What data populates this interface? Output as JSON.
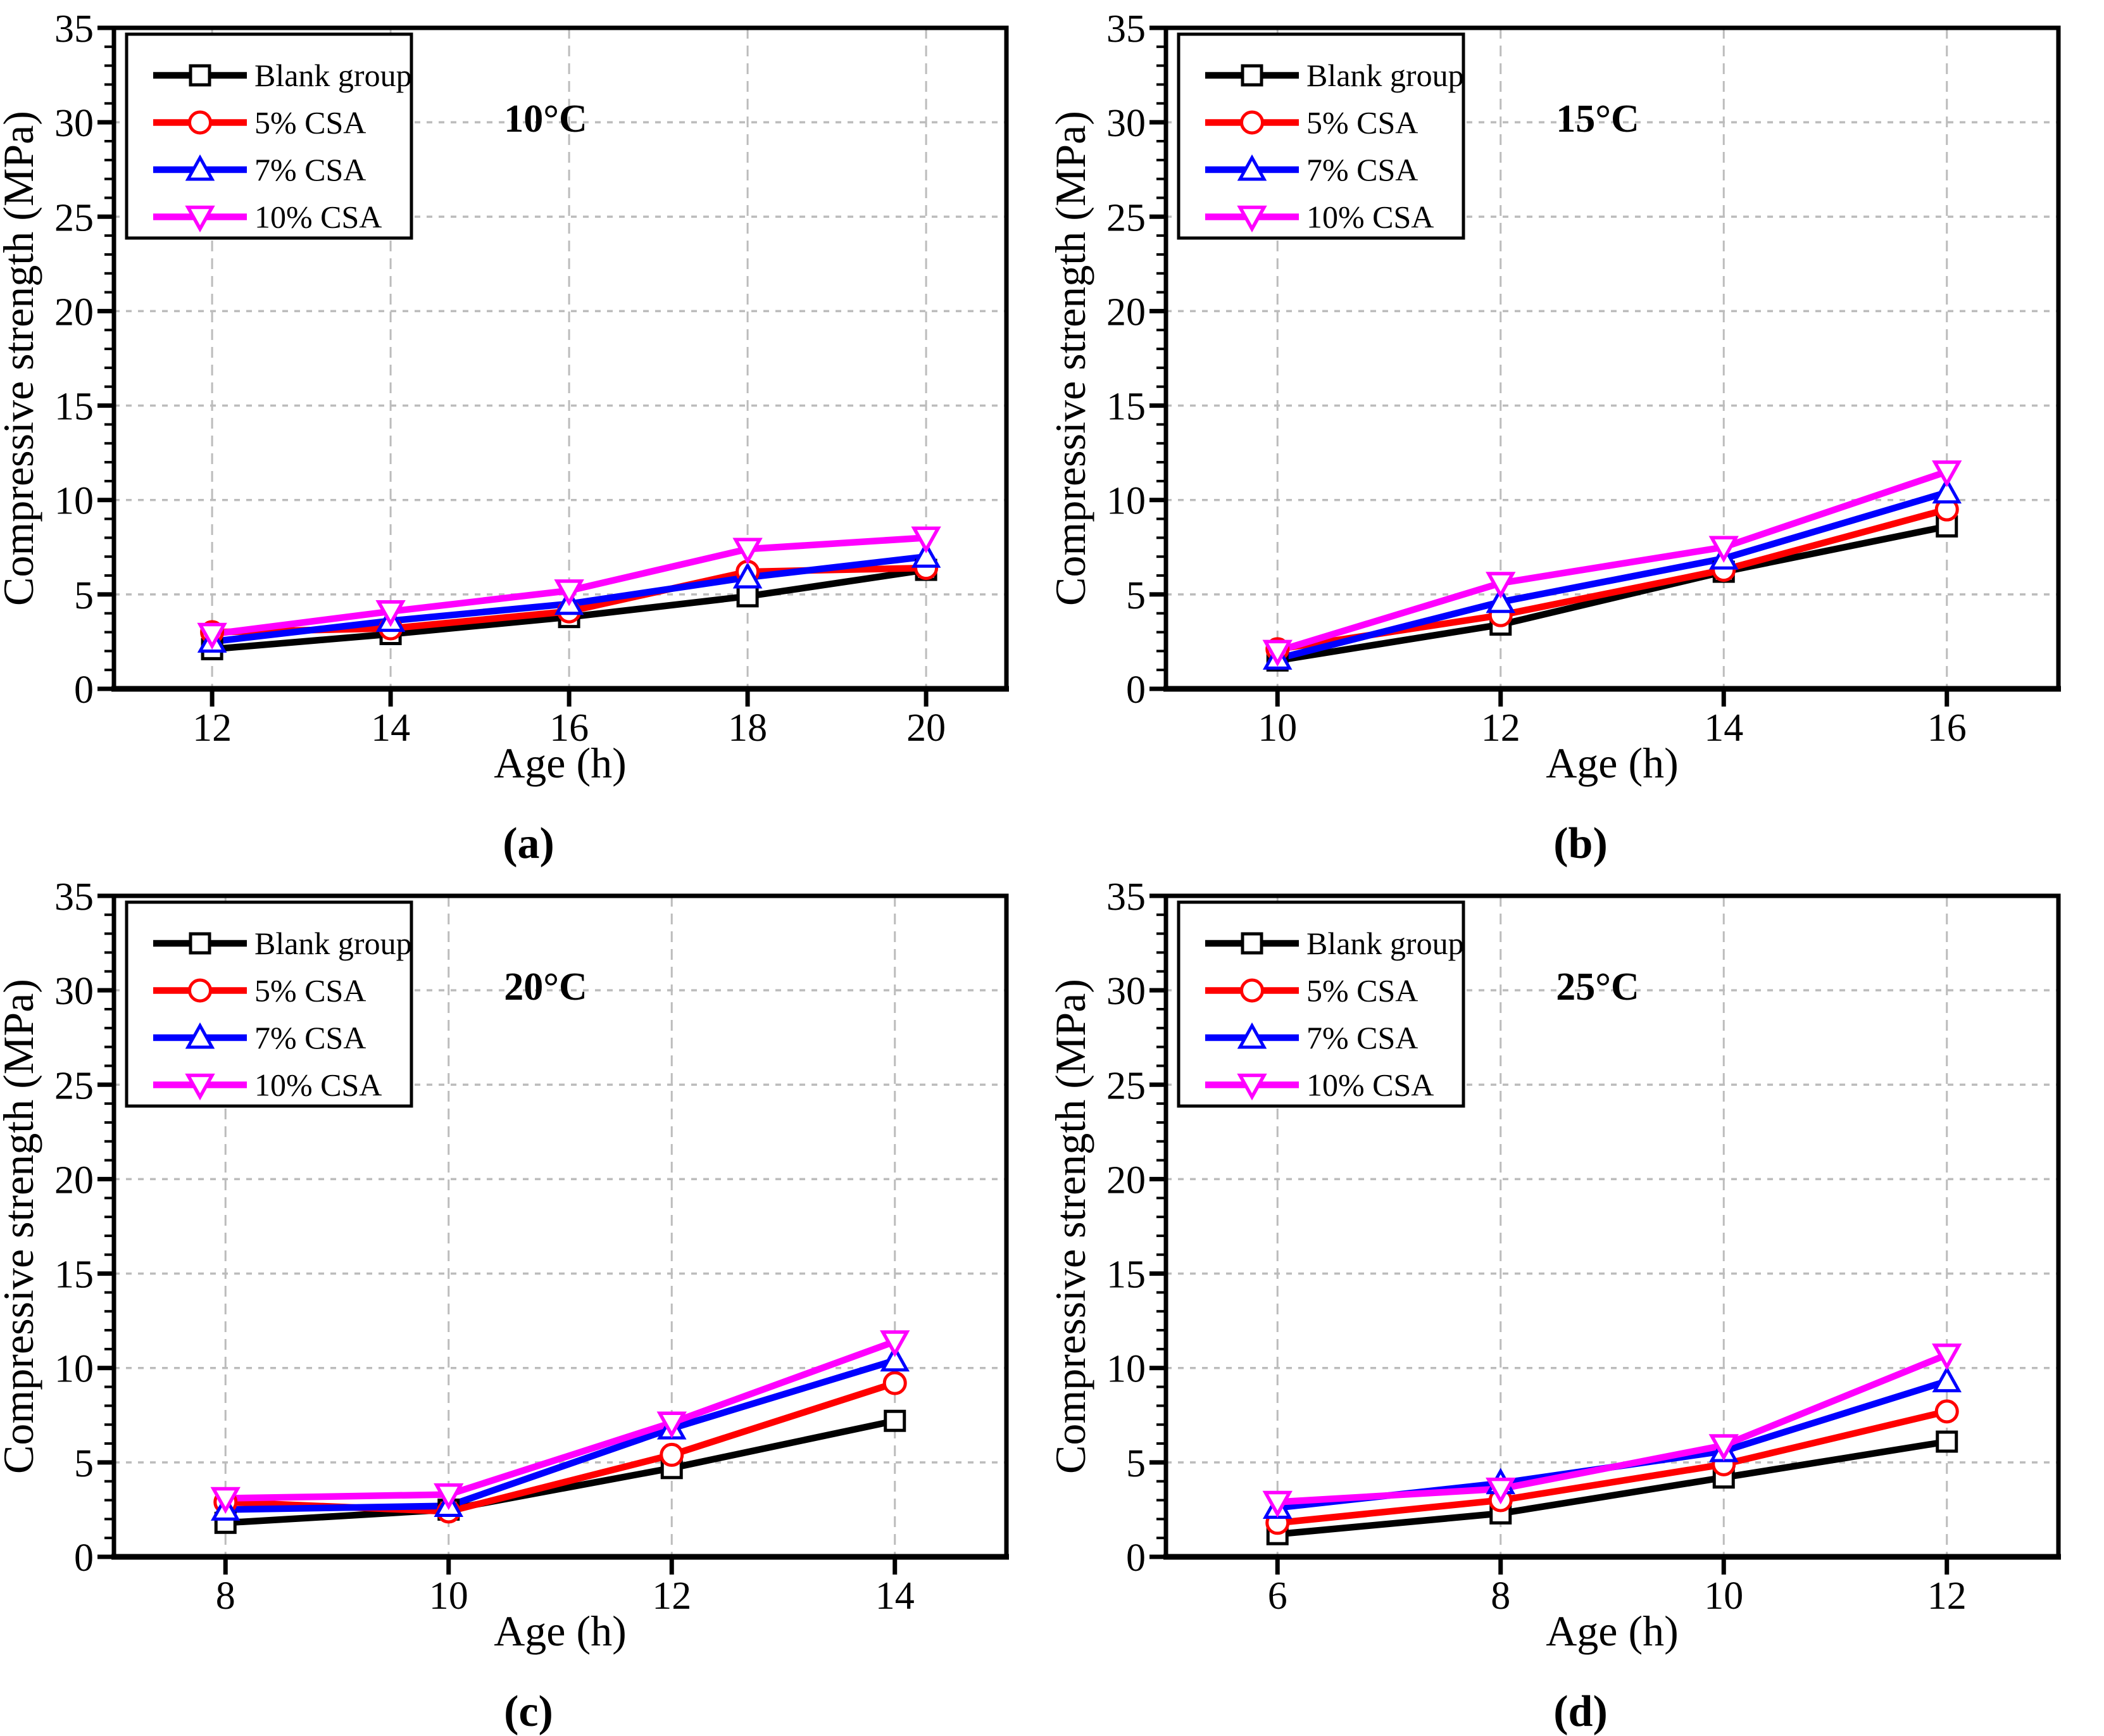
{
  "figure": {
    "background": "#ffffff",
    "grid_color": "#bcbcbc",
    "axis_color": "#000000",
    "legend_labels": [
      "Blank group",
      "5% CSA",
      "7% CSA",
      "10% CSA"
    ],
    "series_colors": [
      "#000000",
      "#ff0000",
      "#0000ff",
      "#ff00ff"
    ],
    "series_markers": [
      "square",
      "circle",
      "triangle-up",
      "triangle-down"
    ]
  },
  "chart_data": [
    {
      "type": "line",
      "panel_label": "(a)",
      "title": "10°C",
      "xlabel": "Age (h)",
      "ylabel": "Compressive strength (MPa)",
      "x": [
        12,
        14,
        16,
        18,
        20
      ],
      "xticks": [
        12,
        14,
        16,
        18,
        20
      ],
      "xlim": [
        10.9,
        20.9
      ],
      "ylim": [
        0,
        35
      ],
      "yticks": [
        0,
        5,
        10,
        15,
        20,
        25,
        30,
        35
      ],
      "grid": "dashed",
      "legend_position": "top-left",
      "series": [
        {
          "name": "Blank group",
          "color": "#000000",
          "marker": "square",
          "values": [
            2.1,
            2.9,
            3.8,
            4.9,
            6.3
          ]
        },
        {
          "name": "5% CSA",
          "color": "#ff0000",
          "marker": "circle",
          "values": [
            3.0,
            3.2,
            4.1,
            6.2,
            6.4
          ]
        },
        {
          "name": "7% CSA",
          "color": "#0000ff",
          "marker": "triangle-up",
          "values": [
            2.5,
            3.6,
            4.5,
            5.9,
            7.0
          ]
        },
        {
          "name": "10% CSA",
          "color": "#ff00ff",
          "marker": "triangle-down",
          "values": [
            2.9,
            4.1,
            5.2,
            7.4,
            8.0
          ]
        }
      ]
    },
    {
      "type": "line",
      "panel_label": "(b)",
      "title": "15°C",
      "xlabel": "Age (h)",
      "ylabel": "Compressive strength (MPa)",
      "x": [
        10,
        12,
        14,
        16
      ],
      "xticks": [
        10,
        12,
        14,
        16
      ],
      "xlim": [
        9,
        17
      ],
      "ylim": [
        0,
        35
      ],
      "yticks": [
        0,
        5,
        10,
        15,
        20,
        25,
        30,
        35
      ],
      "grid": "dashed",
      "legend_position": "top-left",
      "series": [
        {
          "name": "Blank group",
          "color": "#000000",
          "marker": "square",
          "values": [
            1.5,
            3.4,
            6.2,
            8.6
          ]
        },
        {
          "name": "5% CSA",
          "color": "#ff0000",
          "marker": "circle",
          "values": [
            2.1,
            3.9,
            6.3,
            9.5
          ]
        },
        {
          "name": "7% CSA",
          "color": "#0000ff",
          "marker": "triangle-up",
          "values": [
            1.6,
            4.6,
            6.9,
            10.4
          ]
        },
        {
          "name": "10% CSA",
          "color": "#ff00ff",
          "marker": "triangle-down",
          "values": [
            2.0,
            5.6,
            7.5,
            11.5
          ]
        }
      ]
    },
    {
      "type": "line",
      "panel_label": "(c)",
      "title": "20°C",
      "xlabel": "Age (h)",
      "ylabel": "Compressive strength (MPa)",
      "x": [
        8,
        10,
        12,
        14
      ],
      "xticks": [
        8,
        10,
        12,
        14
      ],
      "xlim": [
        7,
        15
      ],
      "ylim": [
        0,
        35
      ],
      "yticks": [
        0,
        5,
        10,
        15,
        20,
        25,
        30,
        35
      ],
      "grid": "dashed",
      "legend_position": "top-left",
      "series": [
        {
          "name": "Blank group",
          "color": "#000000",
          "marker": "square",
          "values": [
            1.8,
            2.5,
            4.7,
            7.2
          ]
        },
        {
          "name": "5% CSA",
          "color": "#ff0000",
          "marker": "circle",
          "values": [
            2.9,
            2.4,
            5.4,
            9.2
          ]
        },
        {
          "name": "7% CSA",
          "color": "#0000ff",
          "marker": "triangle-up",
          "values": [
            2.5,
            2.7,
            6.8,
            10.4
          ]
        },
        {
          "name": "10% CSA",
          "color": "#ff00ff",
          "marker": "triangle-down",
          "values": [
            3.1,
            3.3,
            7.1,
            11.4
          ]
        }
      ]
    },
    {
      "type": "line",
      "panel_label": "(d)",
      "title": "25°C",
      "xlabel": "Age (h)",
      "ylabel": "Compressive strength (MPa)",
      "x": [
        6,
        8,
        10,
        12
      ],
      "xticks": [
        6,
        8,
        10,
        12
      ],
      "xlim": [
        5,
        13
      ],
      "ylim": [
        0,
        35
      ],
      "yticks": [
        0,
        5,
        10,
        15,
        20,
        25,
        30,
        35
      ],
      "grid": "dashed",
      "legend_position": "top-left",
      "series": [
        {
          "name": "Blank group",
          "color": "#000000",
          "marker": "square",
          "values": [
            1.2,
            2.3,
            4.2,
            6.1
          ]
        },
        {
          "name": "5% CSA",
          "color": "#ff0000",
          "marker": "circle",
          "values": [
            1.8,
            3.0,
            4.9,
            7.7
          ]
        },
        {
          "name": "7% CSA",
          "color": "#0000ff",
          "marker": "triangle-up",
          "values": [
            2.6,
            3.9,
            5.6,
            9.3
          ]
        },
        {
          "name": "10% CSA",
          "color": "#ff00ff",
          "marker": "triangle-down",
          "values": [
            2.9,
            3.6,
            5.9,
            10.7
          ]
        }
      ]
    }
  ]
}
